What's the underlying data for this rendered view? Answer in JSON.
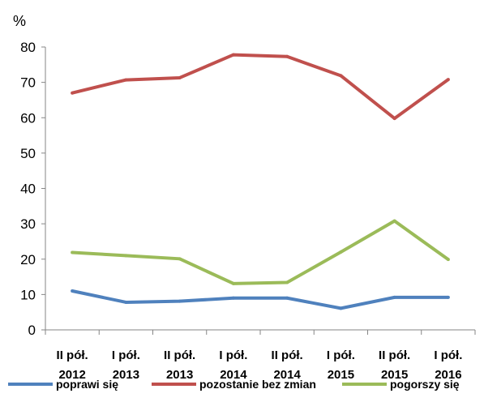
{
  "chart_data": {
    "type": "line",
    "ylabel": "%",
    "ylim": [
      0,
      80
    ],
    "yticks": [
      0,
      10,
      20,
      30,
      40,
      50,
      60,
      70,
      80
    ],
    "grid": false,
    "legend_position": "bottom",
    "categories": [
      [
        "II pół.",
        "2012"
      ],
      [
        "I pół.",
        "2013"
      ],
      [
        "II pół.",
        "2013"
      ],
      [
        "I pół.",
        "2014"
      ],
      [
        "II pół.",
        "2014"
      ],
      [
        "I pół.",
        "2015"
      ],
      [
        "II pół.",
        "2015"
      ],
      [
        "I pół.",
        "2016"
      ]
    ],
    "series": [
      {
        "name": "poprawi się",
        "color": "#4f81bd",
        "values": [
          11,
          7.8,
          8.1,
          9,
          9,
          6.1,
          9.2,
          9.2
        ]
      },
      {
        "name": "pozostanie bez zmian",
        "color": "#c0504d",
        "values": [
          67,
          70.7,
          71.3,
          77.8,
          77.3,
          71.9,
          59.8,
          70.8
        ]
      },
      {
        "name": "pogorszy się",
        "color": "#9bbb59",
        "values": [
          21.9,
          21,
          20.1,
          13.1,
          13.4,
          22,
          30.8,
          19.9
        ]
      }
    ]
  }
}
